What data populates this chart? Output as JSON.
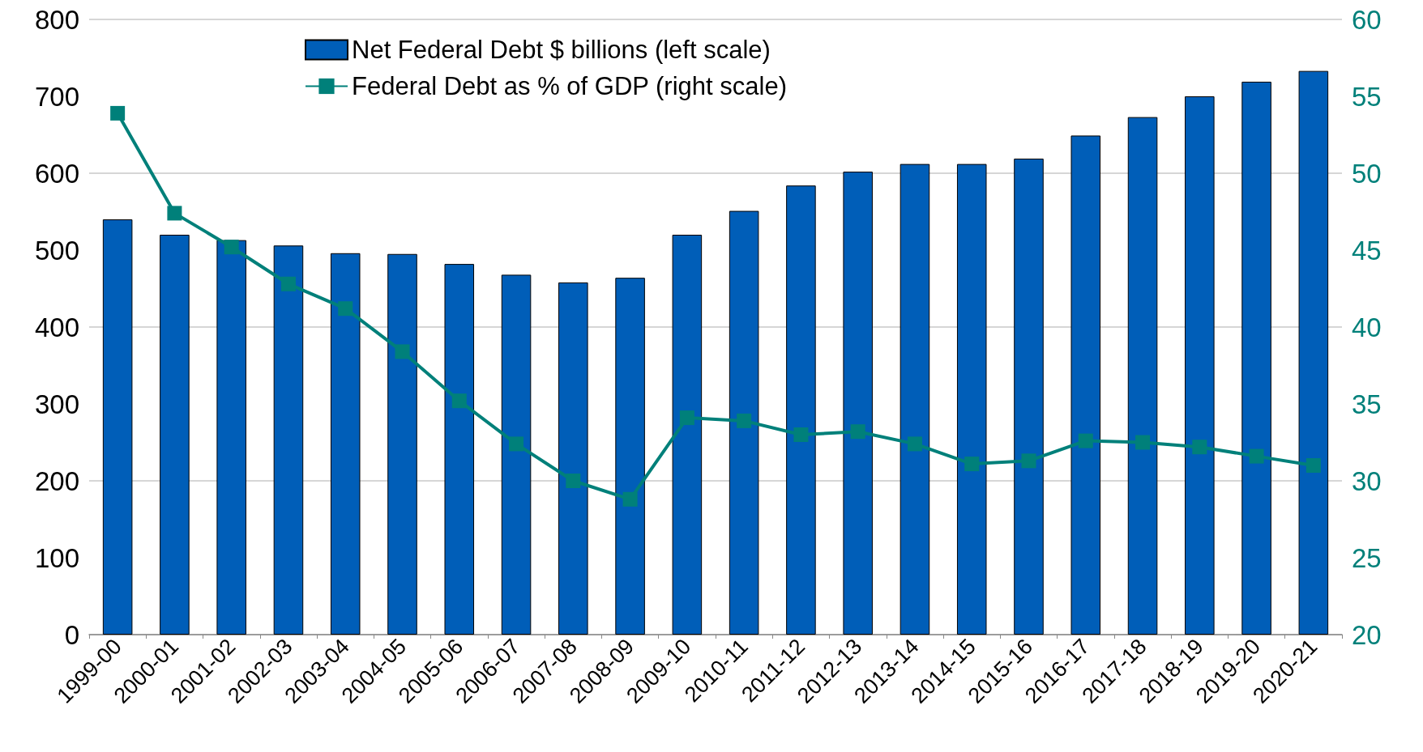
{
  "chart_data": {
    "type": "bar",
    "categories": [
      "1999-00",
      "2000-01",
      "2001-02",
      "2002-03",
      "2003-04",
      "2004-05",
      "2005-06",
      "2006-07",
      "2007-08",
      "2008-09",
      "2009-10",
      "2010-11",
      "2011-12",
      "2012-13",
      "2013-14",
      "2014-15",
      "2015-16",
      "2016-17",
      "2017-18",
      "2018-19",
      "2019-20",
      "2020-21"
    ],
    "series": [
      {
        "name": "Net Federal Debt $ billions (left scale)",
        "color": "#005eb8",
        "values": [
          540,
          520,
          513,
          506,
          496,
          495,
          482,
          468,
          458,
          464,
          520,
          551,
          584,
          602,
          612,
          612,
          619,
          649,
          673,
          700,
          719,
          733
        ]
      },
      {
        "name": "Federal Debt as % of GDP (right scale)",
        "type": "line",
        "axis": "y2",
        "color": "#00807a",
        "marker": "square",
        "values": [
          53.9,
          47.4,
          45.2,
          42.8,
          41.2,
          38.4,
          35.2,
          32.4,
          30.0,
          28.8,
          34.1,
          33.9,
          33.0,
          33.2,
          32.4,
          31.1,
          31.3,
          32.6,
          32.5,
          32.2,
          31.6,
          31.0
        ]
      }
    ],
    "ylim": [
      0,
      800
    ],
    "yticks": [
      0,
      100,
      200,
      300,
      400,
      500,
      600,
      700,
      800
    ],
    "y2lim": [
      20,
      60
    ],
    "y2ticks": [
      20,
      25,
      30,
      35,
      40,
      45,
      50,
      55,
      60
    ],
    "grid": "y",
    "legend": "top"
  }
}
